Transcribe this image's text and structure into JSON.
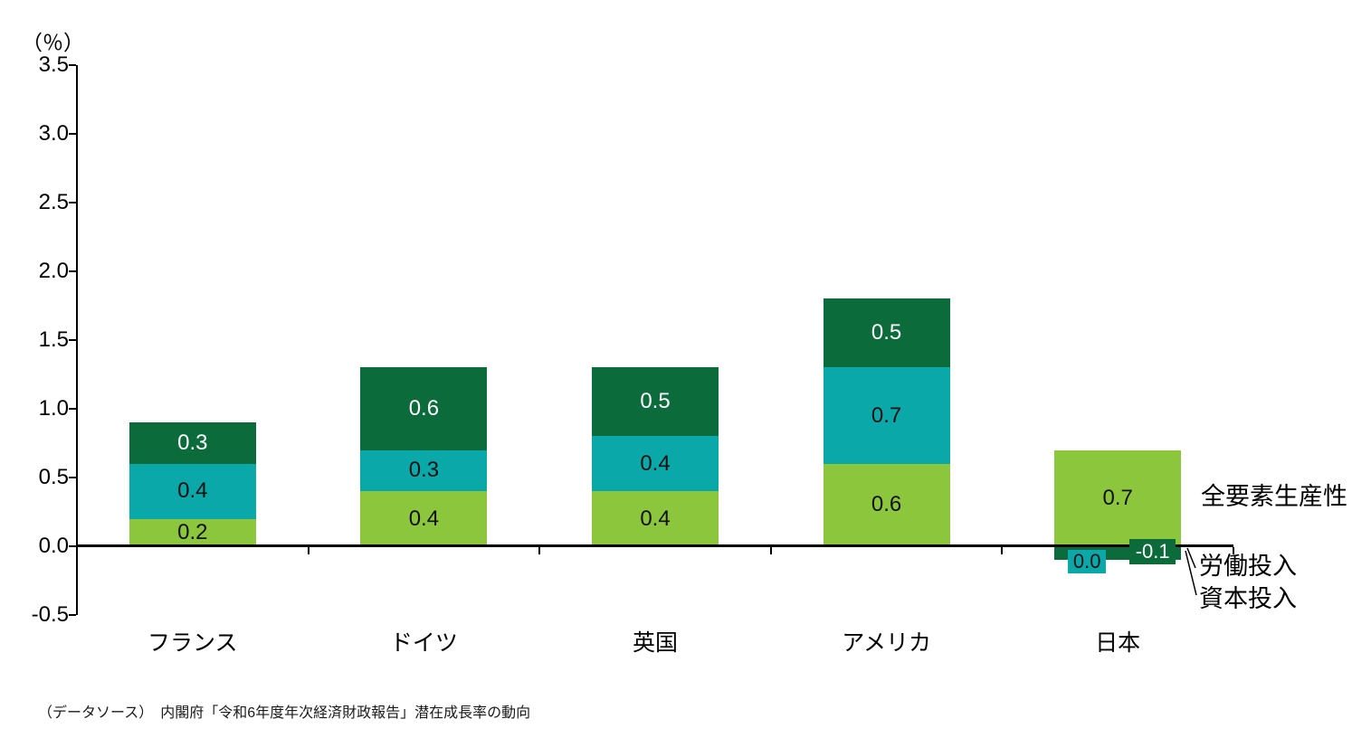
{
  "unit_label": "（％）",
  "chart_data": {
    "type": "bar",
    "stacked": true,
    "title": "",
    "ylabel": "（％）",
    "categories": [
      "フランス",
      "ドイツ",
      "英国",
      "アメリカ",
      "日本"
    ],
    "series": [
      {
        "name": "全要素生産性",
        "color": "#8CC63C",
        "label_color": "#111111",
        "values": [
          0.2,
          0.4,
          0.4,
          0.6,
          0.7
        ]
      },
      {
        "name": "労働投入",
        "color": "#0AA8A8",
        "label_color": "#111111",
        "values": [
          0.4,
          0.3,
          0.4,
          0.7,
          0.0
        ]
      },
      {
        "name": "資本投入",
        "color": "#0B6B3B",
        "label_color": "#FFFFFF",
        "values": [
          0.3,
          0.6,
          0.5,
          0.5,
          -0.1
        ]
      }
    ],
    "ylim": [
      -0.5,
      3.5
    ],
    "ytick_step": 0.5,
    "yticks": [
      "3.5",
      "3.0",
      "2.5",
      "2.0",
      "1.5",
      "1.0",
      "0.5",
      "0.0",
      "-0.5"
    ],
    "grid": false,
    "legend_position": "right-annotations",
    "axis_color": "#000000"
  },
  "source_note": "（データソース）　内閣府「令和6年度年次経済財政報告」潜在成長率の動向"
}
